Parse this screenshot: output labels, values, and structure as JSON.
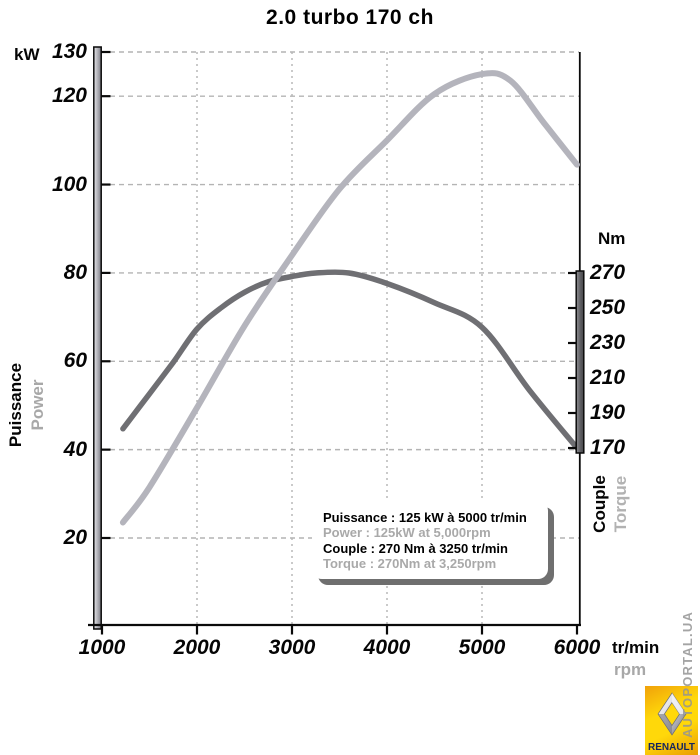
{
  "title": "2.0 turbo 170 ch",
  "left_axis": {
    "unit": "kW",
    "label_fr": "Puissance",
    "label_en": "Power"
  },
  "right_axis": {
    "unit": "Nm",
    "label_fr": "Couple",
    "label_en": "Torque"
  },
  "x_axis": {
    "unit_fr": "tr/min",
    "unit_en": "rpm"
  },
  "legend": {
    "lines": [
      {
        "text": "Puissance : 125 kW à 5000 tr/min",
        "color": "black"
      },
      {
        "text": "Power : 125kW at 5,000rpm",
        "color": "gray"
      },
      {
        "text": "Couple : 270 Nm à 3250 tr/min",
        "color": "black"
      },
      {
        "text": "Torque : 270Nm at 3,250rpm",
        "color": "gray"
      }
    ]
  },
  "watermark": "AUTOPORTAL.UA",
  "logo": {
    "brand": "RENAULT"
  },
  "colors": {
    "power_curve": "#b4b4bc",
    "torque_curve": "#6f6f73",
    "grid": "#b4b4b4",
    "axis": "#0a0a0a",
    "secondary_text": "#a8a8a8",
    "legend_shadow": "#6f6f6f",
    "logo_yellow": "#ffd80a",
    "logo_orange": "#f0a10a",
    "logo_text": "#15265e"
  },
  "chart_data": {
    "type": "line",
    "title": "2.0 turbo 170 ch",
    "xlabel": "tr/min / rpm",
    "x": {
      "range": [
        1000,
        6000
      ],
      "ticks": [
        1000,
        2000,
        3000,
        4000,
        5000,
        6000
      ],
      "grid_at": [
        2000,
        3000,
        4000,
        5000
      ]
    },
    "y_left": {
      "label": "Puissance / Power (kW)",
      "ticks": [
        130,
        120,
        100,
        80,
        60,
        40,
        20
      ],
      "range": [
        0,
        130
      ],
      "grid": true
    },
    "y_right": {
      "label": "Couple / Torque (Nm)",
      "ticks": [
        270,
        250,
        230,
        210,
        190,
        170
      ],
      "range": [
        170,
        270
      ]
    },
    "series": [
      {
        "name": "Power (kW)",
        "axis": "left",
        "color": "#b4b4bc",
        "points": [
          [
            1220,
            23.5
          ],
          [
            1500,
            31.5
          ],
          [
            2000,
            49.5
          ],
          [
            2500,
            68
          ],
          [
            3000,
            84
          ],
          [
            3500,
            99
          ],
          [
            4000,
            110
          ],
          [
            4500,
            120.5
          ],
          [
            5000,
            125
          ],
          [
            5300,
            123.5
          ],
          [
            5650,
            114
          ],
          [
            6000,
            104.5
          ]
        ]
      },
      {
        "name": "Torque (Nm)",
        "axis": "right",
        "color": "#6f6f73",
        "points": [
          [
            1220,
            181
          ],
          [
            1500,
            201
          ],
          [
            1750,
            219
          ],
          [
            2000,
            238
          ],
          [
            2250,
            250
          ],
          [
            2500,
            259
          ],
          [
            2750,
            265
          ],
          [
            3000,
            268
          ],
          [
            3250,
            270
          ],
          [
            3600,
            270
          ],
          [
            4000,
            264
          ],
          [
            4500,
            253
          ],
          [
            5000,
            239
          ],
          [
            5500,
            203
          ],
          [
            6000,
            170
          ]
        ]
      }
    ],
    "annotations": {
      "power_peak": "125 kW @ 5000 tr/min",
      "torque_peak": "270 Nm @ 3250 tr/min"
    },
    "legend_position": "bottom-center-inside",
    "grid_style": "dashed"
  }
}
